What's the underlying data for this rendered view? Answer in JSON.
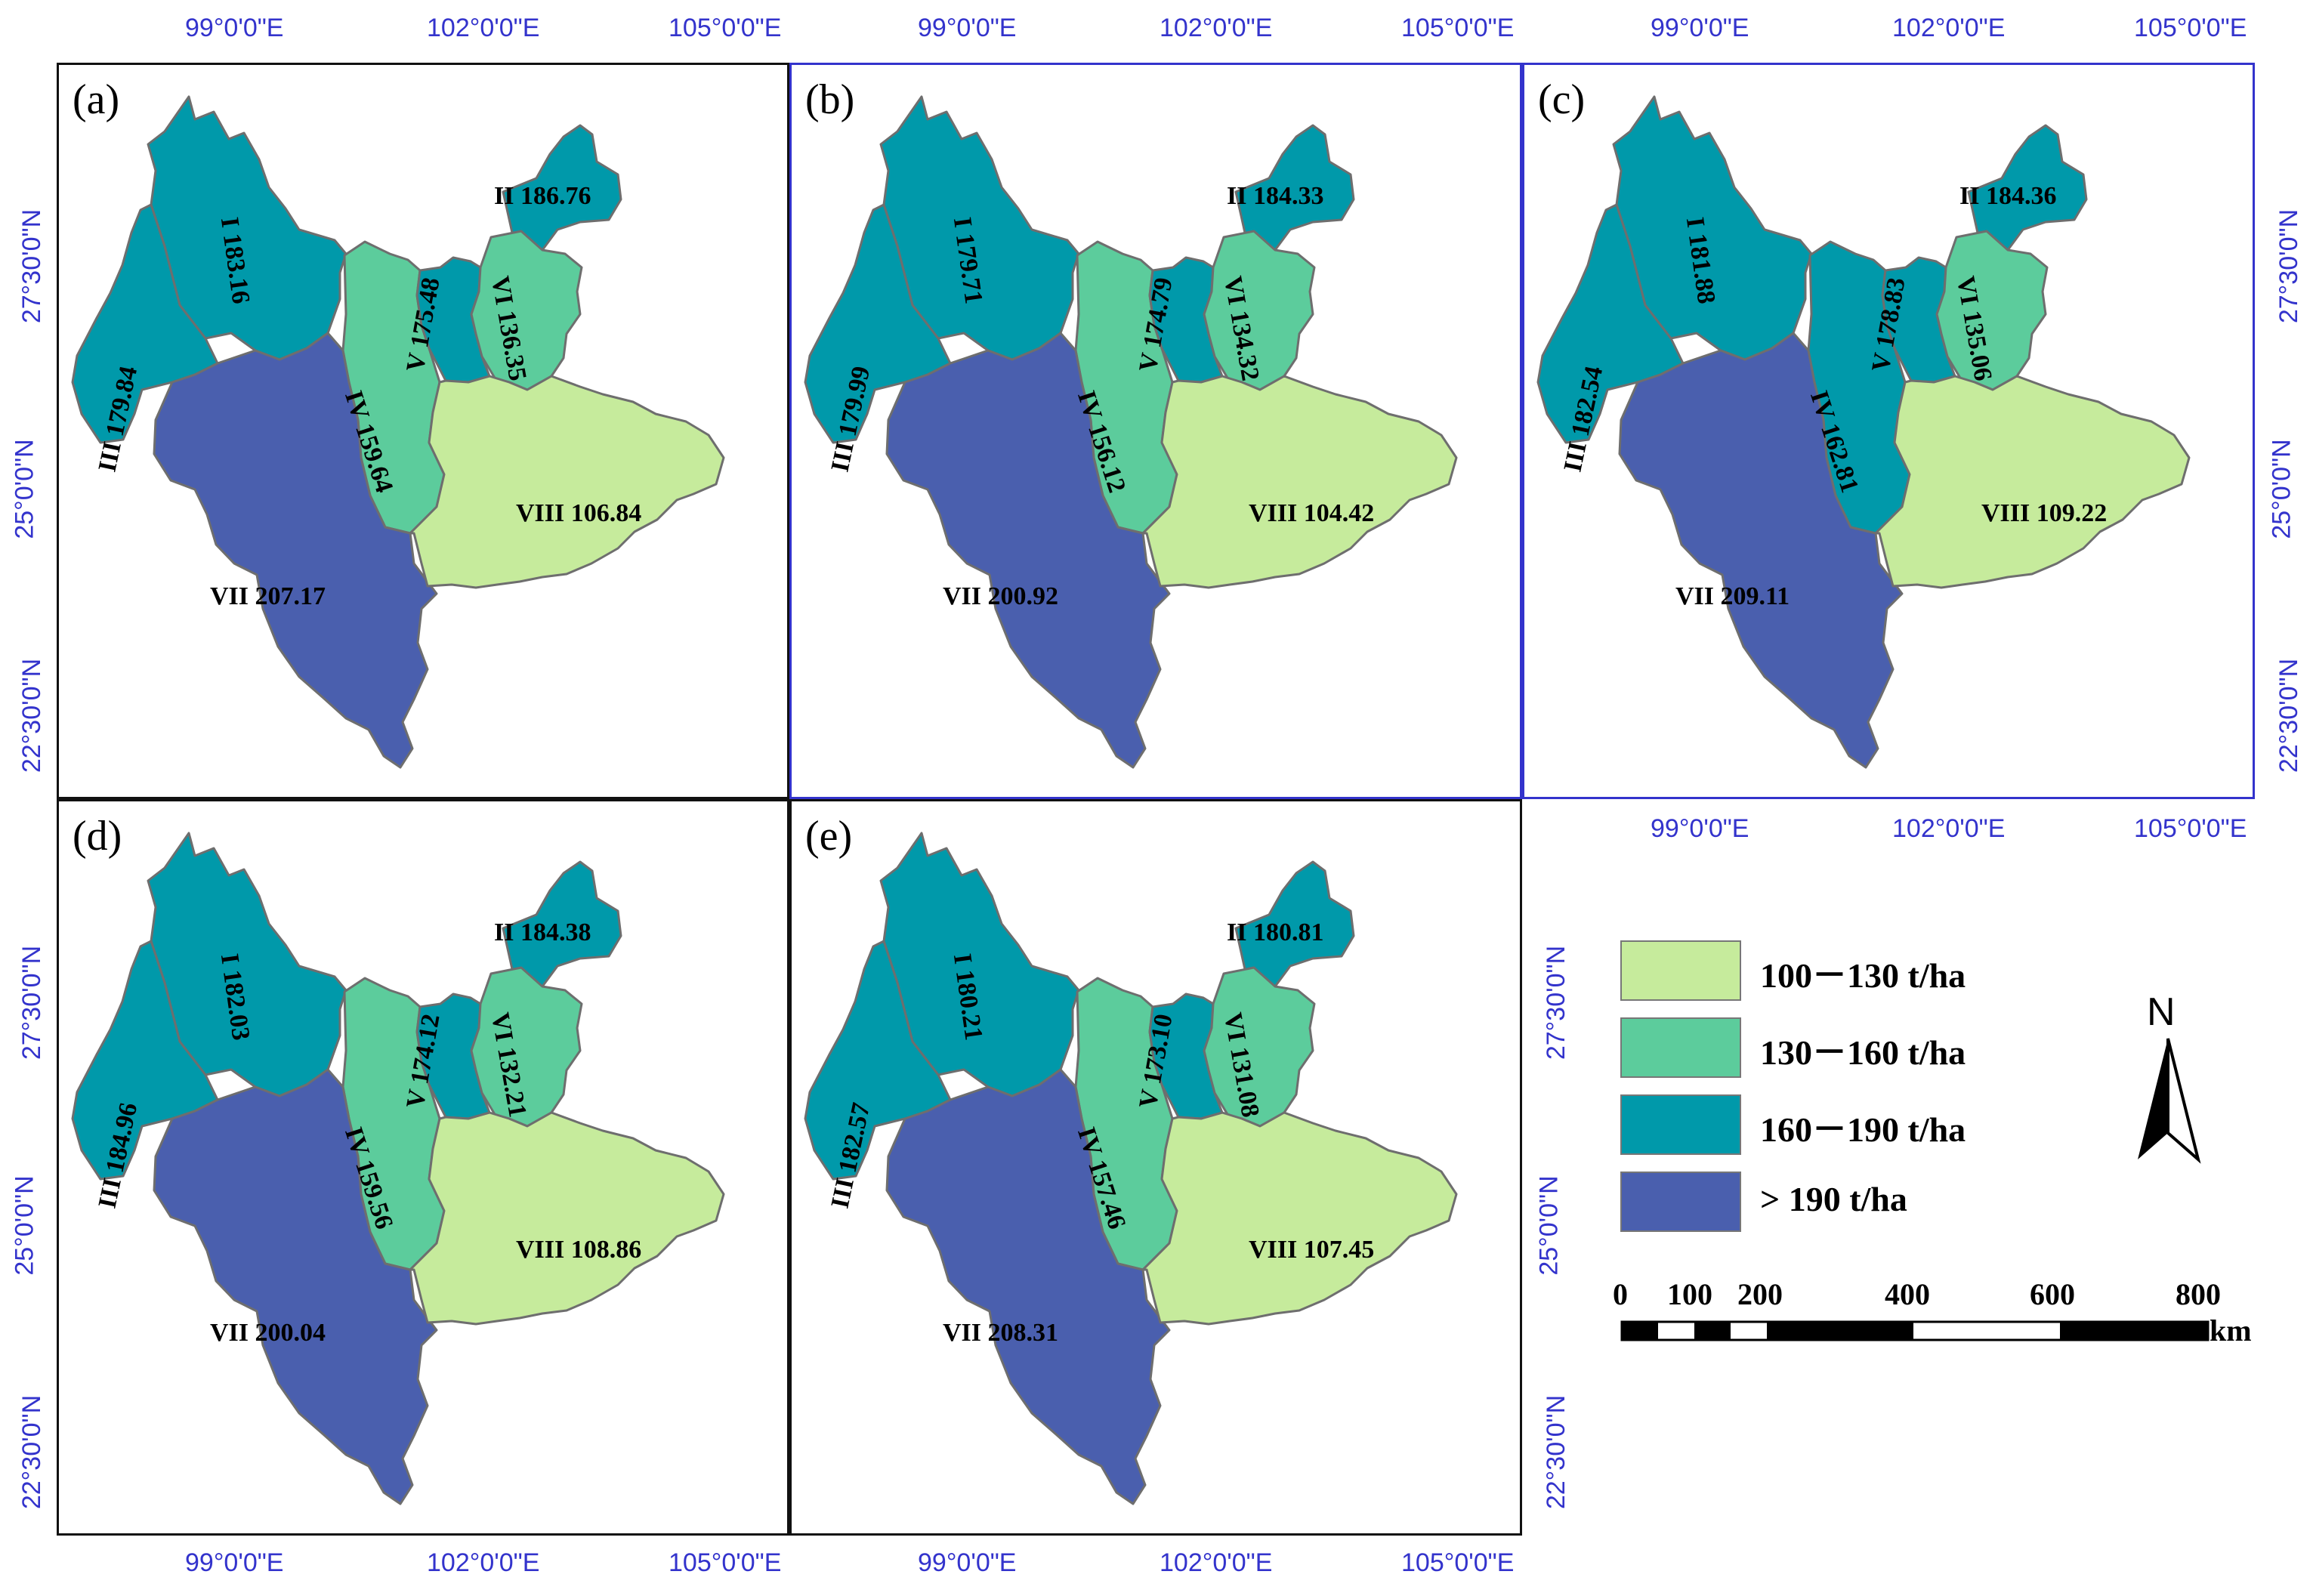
{
  "colors": {
    "class_100_130": "#c6eb9c",
    "class_130_160": "#5ccc9c",
    "class_160_190": "#0099aa",
    "class_gt_190": "#4a5fae",
    "border": "#6e6e6e",
    "coord_text": "#3333cc"
  },
  "coords": {
    "lon": [
      "99°0'0\"E",
      "102°0'0\"E",
      "105°0'0\"E"
    ],
    "lat": [
      "27°30'0\"N",
      "25°0'0\"N",
      "22°30'0\"N"
    ]
  },
  "panels": [
    {
      "label": "(a)",
      "regions": [
        {
          "name": "I",
          "value": "183.16",
          "class": "160-190"
        },
        {
          "name": "II",
          "value": "186.76",
          "class": "160-190"
        },
        {
          "name": "III",
          "value": "179.84",
          "class": "160-190"
        },
        {
          "name": "IV",
          "value": "159.64",
          "class": "130-160"
        },
        {
          "name": "V",
          "value": "175.48",
          "class": "160-190"
        },
        {
          "name": "VI",
          "value": "136.35",
          "class": "130-160"
        },
        {
          "name": "VII",
          "value": "207.17",
          "class": ">190"
        },
        {
          "name": "VIII",
          "value": "106.84",
          "class": "100-130"
        }
      ]
    },
    {
      "label": "(b)",
      "regions": [
        {
          "name": "I",
          "value": "179.71",
          "class": "160-190"
        },
        {
          "name": "II",
          "value": "184.33",
          "class": "160-190"
        },
        {
          "name": "III",
          "value": "179.99",
          "class": "160-190"
        },
        {
          "name": "IV",
          "value": "156.12",
          "class": "130-160"
        },
        {
          "name": "V",
          "value": "174.79",
          "class": "160-190"
        },
        {
          "name": "VI",
          "value": "134.32",
          "class": "130-160"
        },
        {
          "name": "VII",
          "value": "200.92",
          "class": ">190"
        },
        {
          "name": "VIII",
          "value": "104.42",
          "class": "100-130"
        }
      ]
    },
    {
      "label": "(c)",
      "regions": [
        {
          "name": "I",
          "value": "181.88",
          "class": "160-190"
        },
        {
          "name": "II",
          "value": "184.36",
          "class": "160-190"
        },
        {
          "name": "III",
          "value": "182.54",
          "class": "160-190"
        },
        {
          "name": "IV",
          "value": "162.81",
          "class": "160-190"
        },
        {
          "name": "V",
          "value": "178.83",
          "class": "160-190"
        },
        {
          "name": "VI",
          "value": "135.06",
          "class": "130-160"
        },
        {
          "name": "VII",
          "value": "209.11",
          "class": ">190"
        },
        {
          "name": "VIII",
          "value": "109.22",
          "class": "100-130"
        }
      ]
    },
    {
      "label": "(d)",
      "regions": [
        {
          "name": "I",
          "value": "182.03",
          "class": "160-190"
        },
        {
          "name": "II",
          "value": "184.38",
          "class": "160-190"
        },
        {
          "name": "III",
          "value": "184.96",
          "class": "160-190"
        },
        {
          "name": "IV",
          "value": "159.56",
          "class": "130-160"
        },
        {
          "name": "V",
          "value": "174.12",
          "class": "160-190"
        },
        {
          "name": "VI",
          "value": "132.21",
          "class": "130-160"
        },
        {
          "name": "VII",
          "value": "200.04",
          "class": ">190"
        },
        {
          "name": "VIII",
          "value": "108.86",
          "class": "100-130"
        }
      ]
    },
    {
      "label": "(e)",
      "regions": [
        {
          "name": "I",
          "value": "180.21",
          "class": "160-190"
        },
        {
          "name": "II",
          "value": "180.81",
          "class": "160-190"
        },
        {
          "name": "III",
          "value": "182.57",
          "class": "160-190"
        },
        {
          "name": "IV",
          "value": "157.46",
          "class": "130-160"
        },
        {
          "name": "V",
          "value": "173.10",
          "class": "160-190"
        },
        {
          "name": "VI",
          "value": "131.08",
          "class": "130-160"
        },
        {
          "name": "VII",
          "value": "208.31",
          "class": ">190"
        },
        {
          "name": "VIII",
          "value": "107.45",
          "class": "100-130"
        }
      ]
    }
  ],
  "legend": [
    {
      "label": "100－130 t/ha",
      "class": "100-130"
    },
    {
      "label": "130－160 t/ha",
      "class": "130-160"
    },
    {
      "label": "160－190 t/ha",
      "class": "160-190"
    },
    {
      "label": "> 190 t/ha",
      "class": ">190"
    }
  ],
  "north_label": "N",
  "scale": {
    "ticks": [
      "0",
      "100",
      "200",
      "400",
      "600",
      "800"
    ],
    "unit": "km"
  }
}
